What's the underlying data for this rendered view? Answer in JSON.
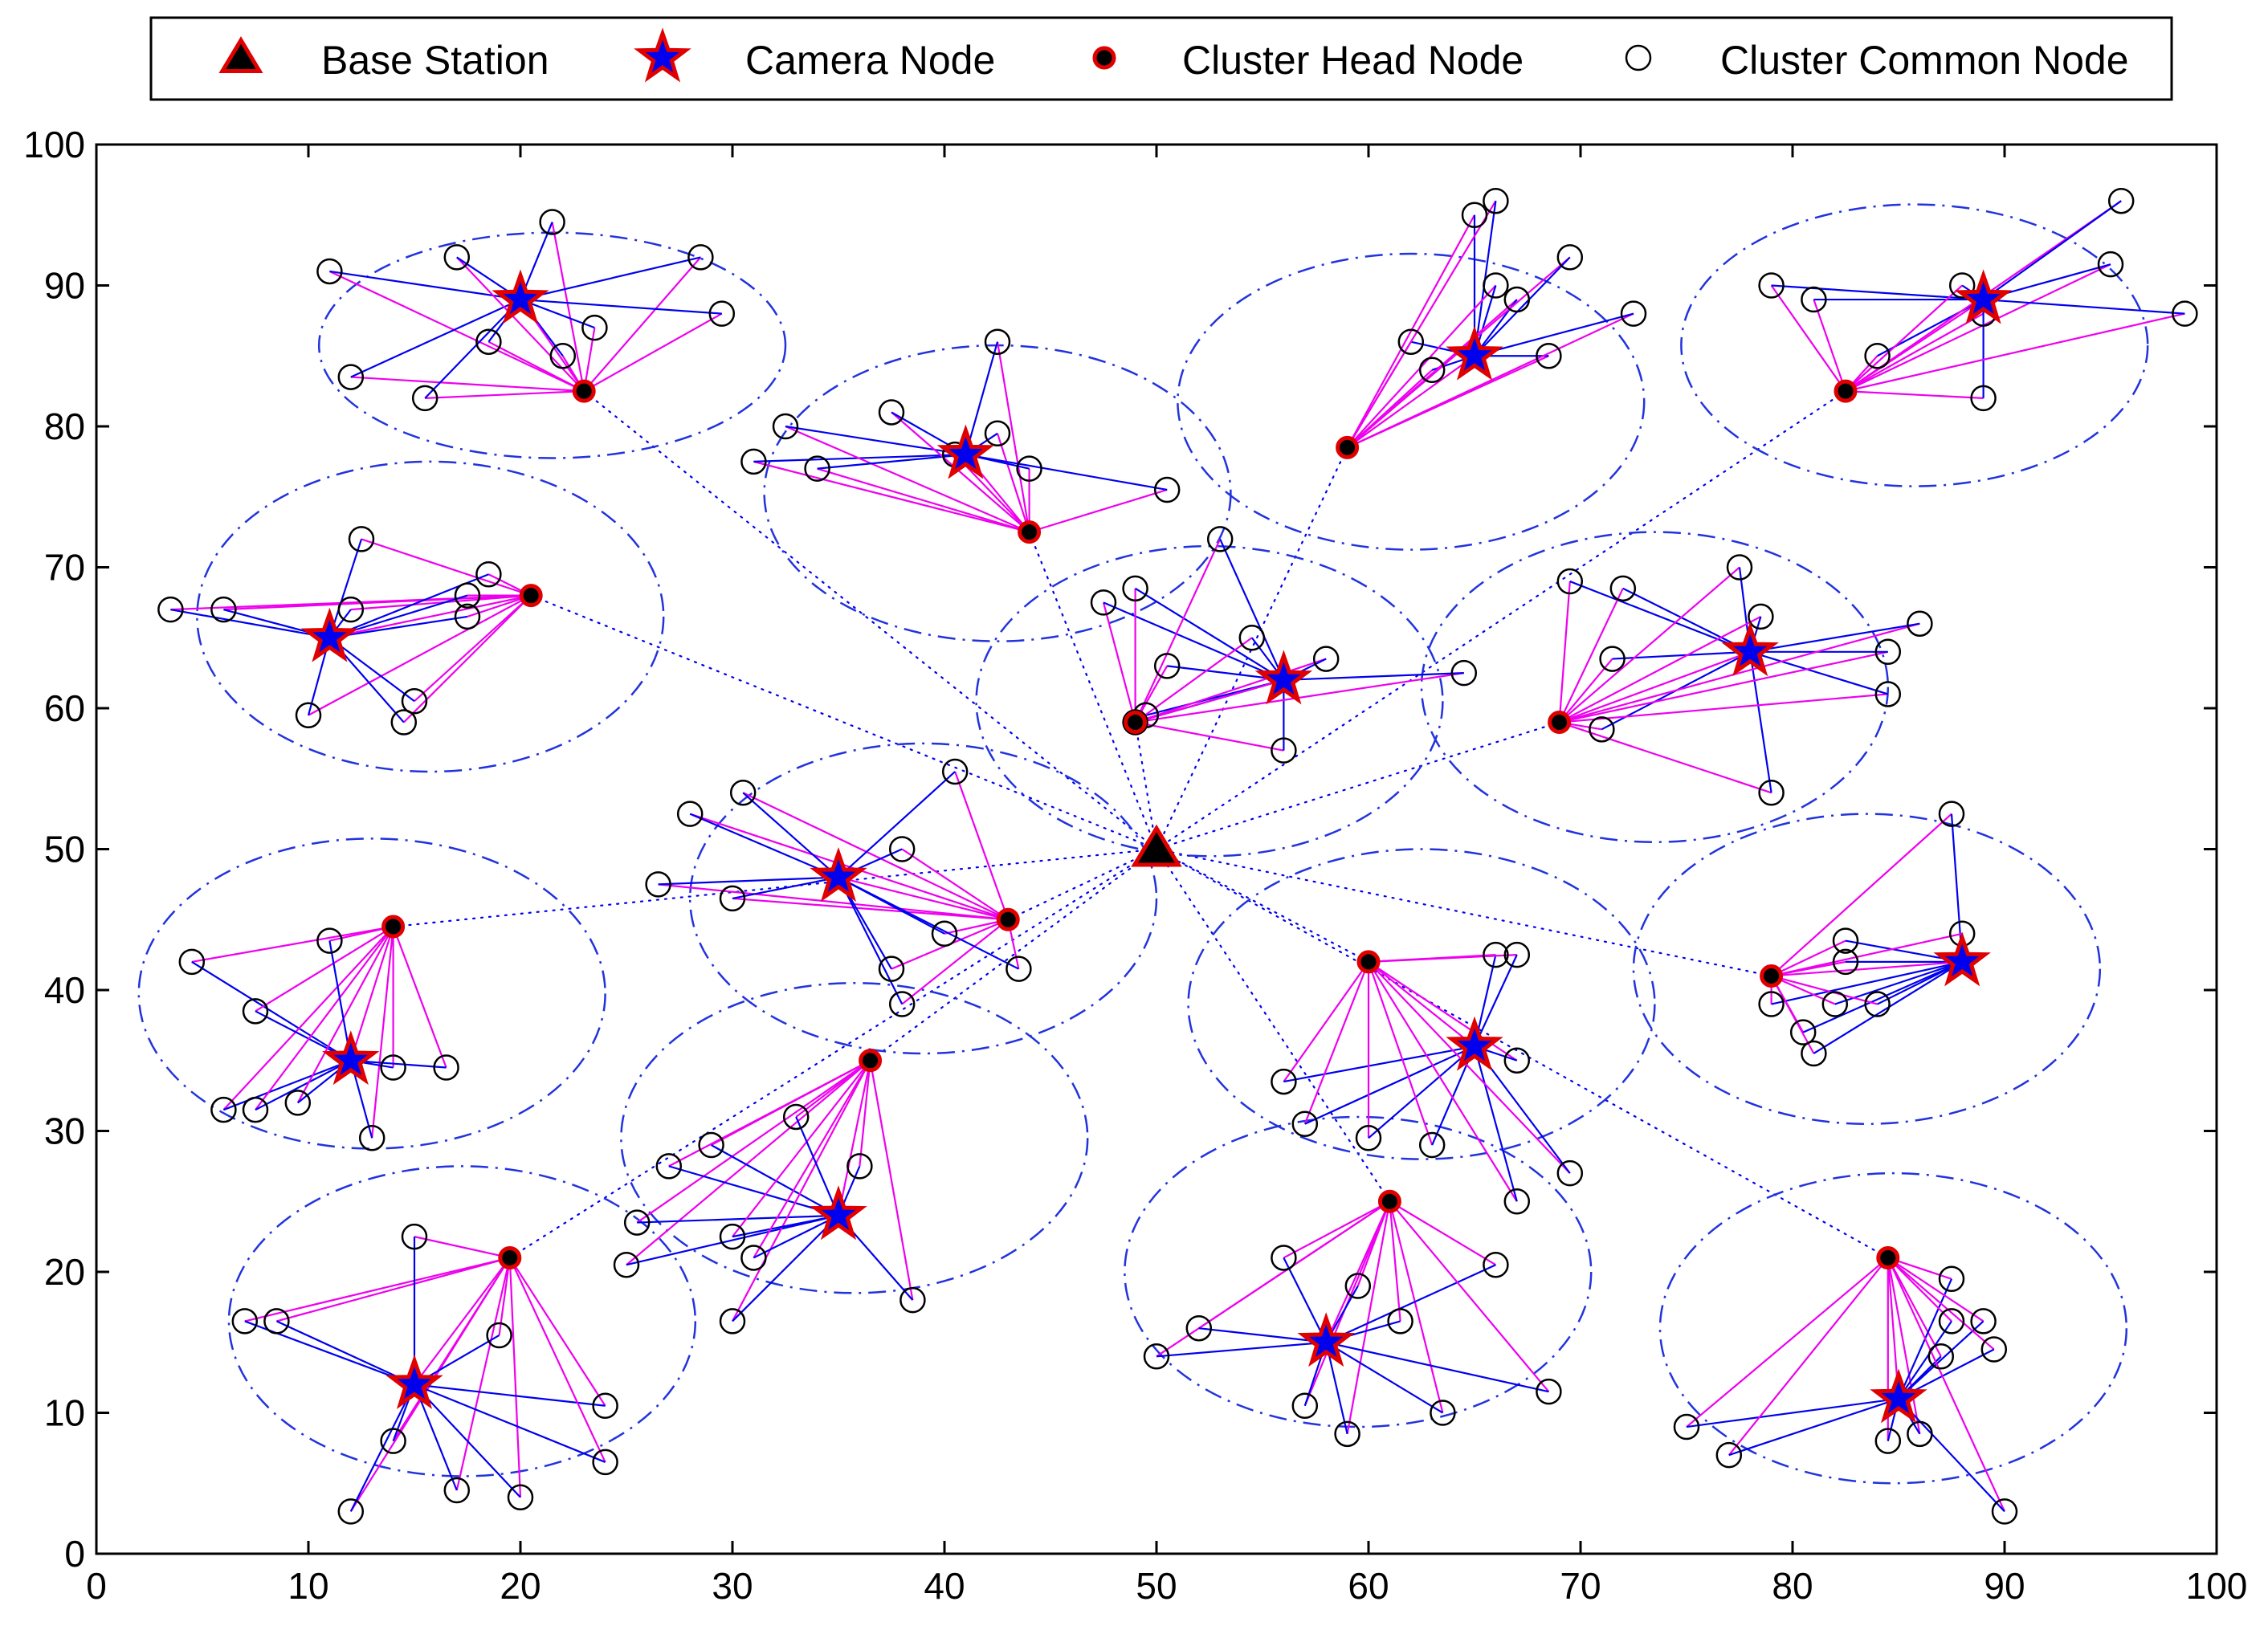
{
  "chart_data": {
    "type": "scatter",
    "title": "",
    "xlabel": "",
    "ylabel": "",
    "xlim": [
      0,
      100
    ],
    "ylim": [
      0,
      100
    ],
    "xticks": [
      "0",
      "10",
      "20",
      "30",
      "40",
      "50",
      "60",
      "70",
      "80",
      "90",
      "100"
    ],
    "yticks": [
      "0",
      "10",
      "20",
      "30",
      "40",
      "50",
      "60",
      "70",
      "80",
      "90",
      "100"
    ],
    "legend": {
      "placement": "top",
      "entries": [
        {
          "label": "Base Station",
          "marker": "triangle"
        },
        {
          "label": "Camera Node",
          "marker": "star"
        },
        {
          "label": "Cluster Head Node",
          "marker": "filled-circle"
        },
        {
          "label": "Cluster Common Node",
          "marker": "open-circle"
        }
      ]
    },
    "colors": {
      "base_station": "#000000",
      "marker_edge": "#e00000",
      "camera_line": "#0000ee",
      "head_line": "#ee00ee",
      "ellipse": "#2233dd",
      "common_node": "#000000"
    },
    "base_station": {
      "x": 50,
      "y": 50
    },
    "clusters": [
      {
        "camera": [
          20,
          89
        ],
        "head": [
          23,
          82.5
        ],
        "radius": [
          11,
          8
        ],
        "nodes": [
          [
            11,
            91
          ],
          [
            12,
            83.5
          ],
          [
            15.5,
            82
          ],
          [
            17,
            92
          ],
          [
            18.5,
            86
          ],
          [
            21.5,
            94.5
          ],
          [
            22,
            85
          ],
          [
            23.5,
            87
          ],
          [
            28.5,
            92
          ],
          [
            29.5,
            88
          ]
        ]
      },
      {
        "camera": [
          41,
          78
        ],
        "head": [
          44,
          72.5
        ],
        "radius": [
          11,
          10.5
        ],
        "nodes": [
          [
            31,
            77.5
          ],
          [
            32.5,
            80
          ],
          [
            34,
            77
          ],
          [
            37.5,
            81
          ],
          [
            40.5,
            78
          ],
          [
            42.5,
            79.5
          ],
          [
            42.5,
            86
          ],
          [
            44,
            77
          ],
          [
            50.5,
            75.5
          ]
        ]
      },
      {
        "camera": [
          65,
          85
        ],
        "head": [
          59,
          78.5
        ],
        "radius": [
          11,
          10.5
        ],
        "nodes": [
          [
            62,
            86
          ],
          [
            63,
            84
          ],
          [
            65,
            95
          ],
          [
            66,
            96
          ],
          [
            66,
            90
          ],
          [
            67,
            89
          ],
          [
            68.5,
            85
          ],
          [
            69.5,
            92
          ],
          [
            72.5,
            88
          ]
        ]
      },
      {
        "camera": [
          89,
          89
        ],
        "head": [
          82.5,
          82.5
        ],
        "radius": [
          11,
          10
        ],
        "nodes": [
          [
            79,
            90
          ],
          [
            81,
            89
          ],
          [
            84,
            85
          ],
          [
            88,
            90
          ],
          [
            89,
            88
          ],
          [
            89,
            82
          ],
          [
            95,
            91.5
          ],
          [
            95.5,
            96
          ],
          [
            98.5,
            88
          ]
        ]
      },
      {
        "camera": [
          11,
          65
        ],
        "head": [
          20.5,
          68
        ],
        "radius": [
          11,
          11
        ],
        "nodes": [
          [
            3.5,
            67
          ],
          [
            6,
            67
          ],
          [
            10,
            59.5
          ],
          [
            12,
            67
          ],
          [
            12.5,
            72
          ],
          [
            14.5,
            59
          ],
          [
            15,
            60.5
          ],
          [
            17.5,
            66.5
          ],
          [
            17.5,
            68
          ],
          [
            18.5,
            69.5
          ]
        ]
      },
      {
        "camera": [
          56,
          62
        ],
        "head": [
          49,
          59
        ],
        "radius": [
          11,
          11
        ],
        "nodes": [
          [
            47.5,
            67.5
          ],
          [
            49,
            59
          ],
          [
            49,
            68.5
          ],
          [
            49.5,
            59.5
          ],
          [
            50.5,
            63
          ],
          [
            53,
            72
          ],
          [
            54.5,
            65
          ],
          [
            56,
            57
          ],
          [
            58,
            63.5
          ],
          [
            64.5,
            62.5
          ]
        ]
      },
      {
        "camera": [
          78,
          64
        ],
        "head": [
          69,
          59
        ],
        "radius": [
          11,
          11
        ],
        "nodes": [
          [
            69.5,
            69
          ],
          [
            71,
            58.5
          ],
          [
            71.5,
            63.5
          ],
          [
            72,
            68.5
          ],
          [
            77.5,
            70
          ],
          [
            78.5,
            66.5
          ],
          [
            79,
            54
          ],
          [
            84.5,
            61
          ],
          [
            84.5,
            64
          ],
          [
            86,
            66
          ]
        ]
      },
      {
        "camera": [
          35,
          48
        ],
        "head": [
          43,
          45
        ],
        "radius": [
          11,
          11
        ],
        "nodes": [
          [
            26.5,
            47.5
          ],
          [
            28,
            52.5
          ],
          [
            30,
            46.5
          ],
          [
            30.5,
            54
          ],
          [
            37.5,
            41.5
          ],
          [
            38,
            39
          ],
          [
            38,
            50
          ],
          [
            40,
            44
          ],
          [
            40.5,
            55.5
          ],
          [
            43.5,
            41.5
          ]
        ]
      },
      {
        "camera": [
          12,
          35
        ],
        "head": [
          14,
          44.5
        ],
        "radius": [
          11,
          11
        ],
        "nodes": [
          [
            4.5,
            42
          ],
          [
            6,
            31.5
          ],
          [
            7.5,
            38.5
          ],
          [
            7.5,
            31.5
          ],
          [
            9.5,
            32
          ],
          [
            11,
            43.5
          ],
          [
            13,
            29.5
          ],
          [
            14,
            34.5
          ],
          [
            16.5,
            34.5
          ]
        ]
      },
      {
        "camera": [
          65,
          36
        ],
        "head": [
          60,
          42
        ],
        "radius": [
          11,
          11
        ],
        "nodes": [
          [
            56,
            33.5
          ],
          [
            57,
            30.5
          ],
          [
            60,
            29.5
          ],
          [
            63,
            29
          ],
          [
            66,
            42.5
          ],
          [
            67,
            42.5
          ],
          [
            67,
            35
          ],
          [
            67,
            25
          ],
          [
            69.5,
            27
          ]
        ]
      },
      {
        "camera": [
          88,
          42
        ],
        "head": [
          79,
          41
        ],
        "radius": [
          11,
          11
        ],
        "nodes": [
          [
            79,
            39
          ],
          [
            80.5,
            37
          ],
          [
            81,
            35.5
          ],
          [
            82,
            39
          ],
          [
            82.5,
            43.5
          ],
          [
            82.5,
            42
          ],
          [
            84,
            39
          ],
          [
            87.5,
            52.5
          ],
          [
            88,
            44
          ]
        ]
      },
      {
        "camera": [
          35,
          24
        ],
        "head": [
          36.5,
          35
        ],
        "radius": [
          11,
          11
        ],
        "nodes": [
          [
            25,
            20.5
          ],
          [
            25.5,
            23.5
          ],
          [
            27,
            27.5
          ],
          [
            29,
            29
          ],
          [
            30,
            16.5
          ],
          [
            30,
            22.5
          ],
          [
            31,
            21
          ],
          [
            33,
            31
          ],
          [
            36,
            27.5
          ],
          [
            38.5,
            18
          ]
        ]
      },
      {
        "camera": [
          15,
          12
        ],
        "head": [
          19.5,
          21
        ],
        "radius": [
          11,
          11
        ],
        "nodes": [
          [
            7,
            16.5
          ],
          [
            8.5,
            16.5
          ],
          [
            12,
            3
          ],
          [
            14,
            8
          ],
          [
            15,
            22.5
          ],
          [
            17,
            4.5
          ],
          [
            19,
            15.5
          ],
          [
            20,
            4
          ],
          [
            24,
            10.5
          ],
          [
            24,
            6.5
          ]
        ]
      },
      {
        "camera": [
          58,
          15
        ],
        "head": [
          61,
          25
        ],
        "radius": [
          11,
          11
        ],
        "nodes": [
          [
            50,
            14
          ],
          [
            52,
            16
          ],
          [
            56,
            21
          ],
          [
            57,
            10.5
          ],
          [
            59,
            8.5
          ],
          [
            59.5,
            19
          ],
          [
            61.5,
            16.5
          ],
          [
            63.5,
            10
          ],
          [
            66,
            20.5
          ],
          [
            68.5,
            11.5
          ]
        ]
      },
      {
        "camera": [
          85,
          11
        ],
        "head": [
          84.5,
          21
        ],
        "radius": [
          11,
          11
        ],
        "nodes": [
          [
            75,
            9
          ],
          [
            77,
            7
          ],
          [
            84.5,
            8
          ],
          [
            86,
            8.5
          ],
          [
            87,
            14
          ],
          [
            87.5,
            19.5
          ],
          [
            87.5,
            16.5
          ],
          [
            89,
            16.5
          ],
          [
            89.5,
            14.5
          ],
          [
            90,
            3
          ]
        ]
      }
    ]
  }
}
